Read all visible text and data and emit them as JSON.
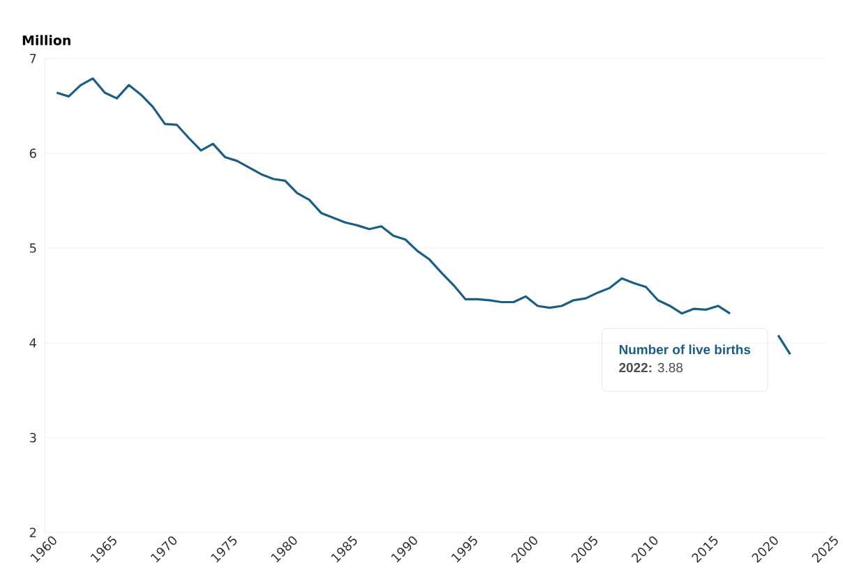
{
  "chart_data": {
    "type": "line",
    "ylabel": "Million",
    "x": [
      1961,
      1962,
      1963,
      1964,
      1965,
      1966,
      1967,
      1968,
      1969,
      1970,
      1971,
      1972,
      1973,
      1974,
      1975,
      1976,
      1977,
      1978,
      1979,
      1980,
      1981,
      1982,
      1983,
      1984,
      1985,
      1986,
      1987,
      1988,
      1989,
      1990,
      1991,
      1992,
      1993,
      1994,
      1995,
      1996,
      1997,
      1998,
      1999,
      2000,
      2001,
      2002,
      2003,
      2004,
      2005,
      2006,
      2007,
      2008,
      2009,
      2010,
      2011,
      2012,
      2013,
      2014,
      2015,
      2016,
      2017,
      2018,
      2019,
      2020,
      2021,
      2022
    ],
    "series": [
      {
        "name": "Number of live births",
        "color": "#1b5e82",
        "values": [
          6.64,
          6.6,
          6.72,
          6.79,
          6.64,
          6.58,
          6.72,
          6.62,
          6.49,
          6.31,
          6.3,
          6.16,
          6.03,
          6.1,
          5.96,
          5.92,
          5.85,
          5.78,
          5.73,
          5.71,
          5.58,
          5.51,
          5.37,
          5.32,
          5.27,
          5.24,
          5.2,
          5.23,
          5.13,
          5.09,
          4.97,
          4.88,
          4.74,
          4.61,
          4.46,
          4.46,
          4.45,
          4.43,
          4.43,
          4.49,
          4.39,
          4.37,
          4.39,
          4.45,
          4.47,
          4.53,
          4.58,
          4.68,
          4.63,
          4.59,
          4.45,
          4.39,
          4.31,
          4.36,
          4.35,
          4.39,
          4.31,
          null,
          null,
          null,
          4.08,
          3.88
        ]
      }
    ],
    "annotations": [
      "**2022:** 3.88"
    ],
    "xlim": [
      1960,
      2025
    ],
    "xticks": [
      1960,
      1965,
      1970,
      1975,
      1980,
      1985,
      1990,
      1995,
      2000,
      2005,
      2010,
      2015,
      2020,
      2025
    ],
    "ylim": [
      2,
      7
    ],
    "yticks": [
      2,
      3,
      4,
      5,
      6,
      7
    ],
    "grid": "y",
    "marker": "none",
    "line_style": "solid"
  }
}
